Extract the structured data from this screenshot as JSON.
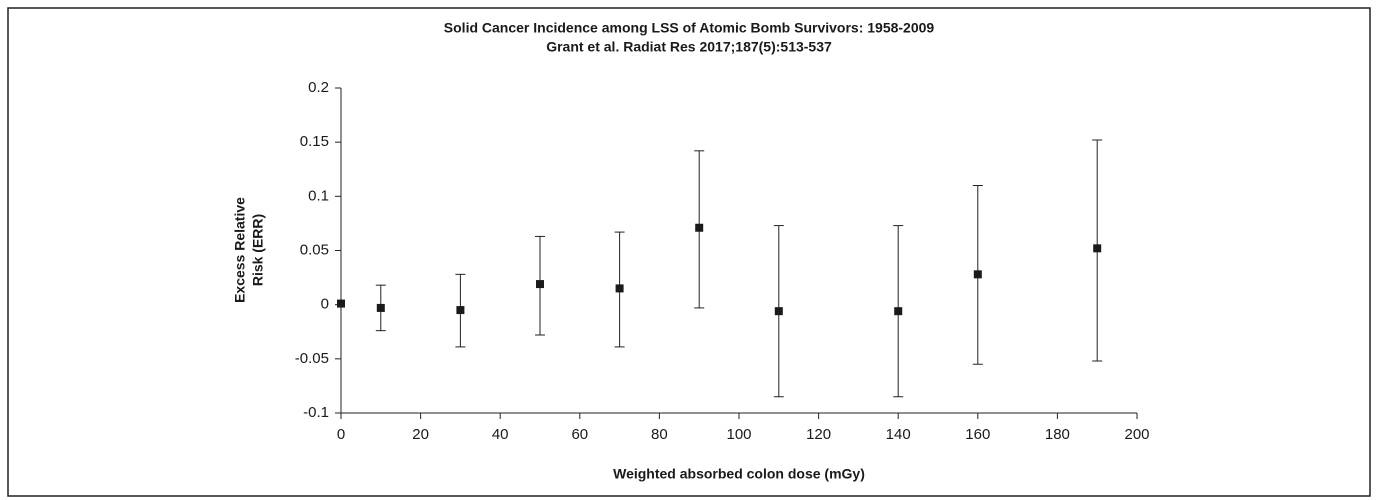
{
  "chart_data": {
    "type": "scatter",
    "title": "Solid Cancer Incidence among LSS of Atomic Bomb Survivors: 1958-2009",
    "subtitle": "Grant et al. Radiat Res 2017;187(5):513-537",
    "xlabel": "Weighted absorbed colon dose (mGy)",
    "ylabel": [
      "Excess Relative",
      "Risk (ERR)"
    ],
    "x": [
      0,
      10,
      30,
      50,
      70,
      90,
      110,
      140,
      160,
      190
    ],
    "values": [
      0.001,
      -0.003,
      -0.005,
      0.019,
      0.015,
      0.071,
      -0.006,
      -0.006,
      0.028,
      0.052
    ],
    "lower": [
      null,
      -0.024,
      -0.039,
      -0.028,
      -0.039,
      -0.003,
      -0.085,
      -0.085,
      -0.055,
      -0.052
    ],
    "upper": [
      null,
      0.018,
      0.028,
      0.063,
      0.067,
      0.142,
      0.073,
      0.073,
      0.11,
      0.152
    ],
    "color": "#1a1a1a",
    "xlim": [
      0,
      200
    ],
    "xticks": [
      0,
      20,
      40,
      60,
      80,
      100,
      120,
      140,
      160,
      180,
      200
    ],
    "ylim": [
      -0.1,
      0.2
    ],
    "yticks": [
      -0.1,
      -0.05,
      0,
      0.05,
      0.1,
      0.15,
      0.2
    ]
  }
}
